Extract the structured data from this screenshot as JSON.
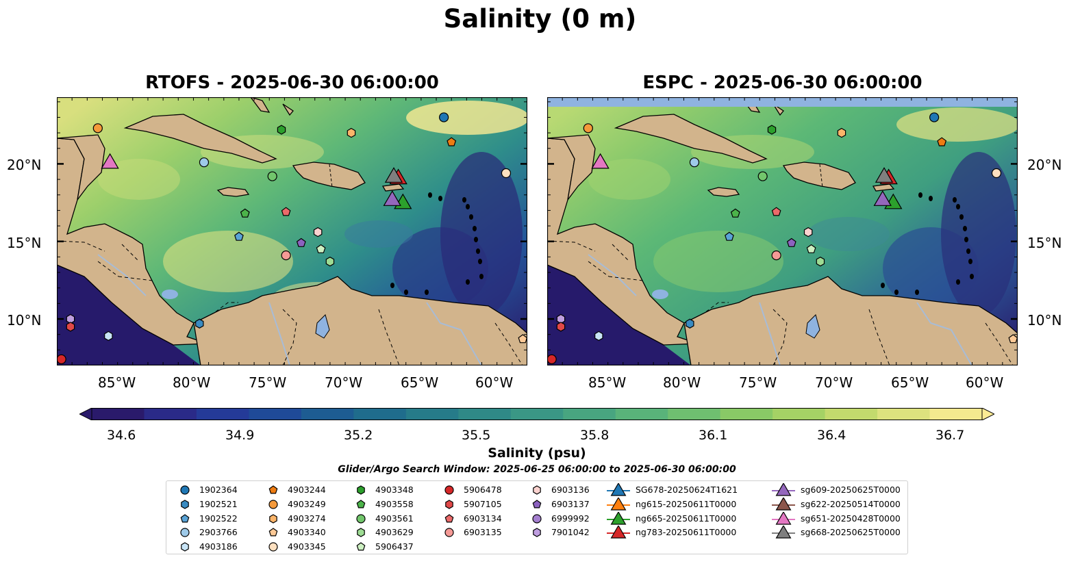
{
  "suptitle": "Salinity (0 m)",
  "colors": {
    "land": "#d2b48c",
    "ocean_low": "#261a6b",
    "ocean_high": "#fbeb94",
    "lakes": "#8fb3e0",
    "rivers": "#a8bcd6"
  },
  "panels": [
    {
      "title": "RTOFS - 2025-06-30 06:00:00",
      "lon_ticks": [
        "85°W",
        "80°W",
        "75°W",
        "70°W",
        "65°W",
        "60°W"
      ],
      "lat_ticks": [
        "20°N",
        "15°N",
        "10°N"
      ],
      "lat_tick_side": "left"
    },
    {
      "title": "ESPC - 2025-06-30 06:00:00",
      "lon_ticks": [
        "85°W",
        "80°W",
        "75°W",
        "70°W",
        "65°W",
        "60°W"
      ],
      "lat_ticks": [
        "20°N",
        "15°N",
        "10°N"
      ],
      "lat_tick_side": "right"
    }
  ],
  "colorbar": {
    "ticks": [
      "34.6",
      "34.9",
      "35.2",
      "35.5",
      "35.8",
      "36.1",
      "36.4",
      "36.7"
    ],
    "label": "Salinity (psu)",
    "extend": "both",
    "min": 34.6,
    "max": 36.7
  },
  "search_window": "Glider/Argo Search Window: 2025-06-25 06:00:00 to 2025-06-30 06:00:00",
  "legend": {
    "columns": [
      [
        {
          "label": "1902364",
          "marker": "circle",
          "color": "#1f77b4"
        },
        {
          "label": "1902521",
          "marker": "hexagon",
          "color": "#3a8bc2"
        },
        {
          "label": "1902522",
          "marker": "pentagon",
          "color": "#5aa3d6"
        },
        {
          "label": "2903766",
          "marker": "circle",
          "color": "#9ecae9"
        },
        {
          "label": "4903186",
          "marker": "hexagon",
          "color": "#c8e4f6"
        }
      ],
      [
        {
          "label": "4903244",
          "marker": "pentagon",
          "color": "#ee7c12"
        },
        {
          "label": "4903249",
          "marker": "circle",
          "color": "#f59a3b"
        },
        {
          "label": "4903274",
          "marker": "hexagon",
          "color": "#fbb56a"
        },
        {
          "label": "4903340",
          "marker": "pentagon",
          "color": "#fcc996"
        },
        {
          "label": "4903345",
          "marker": "circle",
          "color": "#fde0c0"
        }
      ],
      [
        {
          "label": "4903348",
          "marker": "hexagon",
          "color": "#2ca02c"
        },
        {
          "label": "4903558",
          "marker": "pentagon",
          "color": "#4cb34a"
        },
        {
          "label": "4903561",
          "marker": "circle",
          "color": "#72c66c"
        },
        {
          "label": "4903629",
          "marker": "hexagon",
          "color": "#9edc94"
        },
        {
          "label": "5906437",
          "marker": "pentagon",
          "color": "#cdf0c2"
        }
      ],
      [
        {
          "label": "5906478",
          "marker": "circle",
          "color": "#d62728"
        },
        {
          "label": "5907105",
          "marker": "hexagon",
          "color": "#e04848"
        },
        {
          "label": "6903134",
          "marker": "pentagon",
          "color": "#eb6a6a"
        },
        {
          "label": "6903135",
          "marker": "circle",
          "color": "#f59a96"
        }
      ],
      [
        {
          "label": "6903136",
          "marker": "hexagon",
          "color": "#fbd2cf"
        },
        {
          "label": "6903137",
          "marker": "pentagon",
          "color": "#8c62bf"
        },
        {
          "label": "6999992",
          "marker": "circle",
          "color": "#a47fcf"
        },
        {
          "label": "7901042",
          "marker": "hexagon",
          "color": "#bf9ee0"
        }
      ],
      [
        {
          "label": "SG678-20250624T1621",
          "marker": "triangle",
          "color": "#1f77b4"
        },
        {
          "label": "ng615-20250611T0000",
          "marker": "triangle",
          "color": "#ff7f0e"
        },
        {
          "label": "ng665-20250611T0000",
          "marker": "triangle",
          "color": "#2ca02c"
        },
        {
          "label": "ng783-20250611T0000",
          "marker": "triangle",
          "color": "#d62728"
        }
      ],
      [
        {
          "label": "sg609-20250625T0000",
          "marker": "triangle",
          "color": "#9467bd"
        },
        {
          "label": "sg622-20250514T0000",
          "marker": "triangle",
          "color": "#8c564b"
        },
        {
          "label": "sg651-20250428T0000",
          "marker": "triangle",
          "color": "#e377c2"
        },
        {
          "label": "sg668-20250625T0000",
          "marker": "triangle",
          "color": "#7f7f7f"
        }
      ]
    ]
  },
  "map_extent": {
    "lon": [
      -89,
      -58
    ],
    "lat": [
      7,
      24.3
    ]
  },
  "observations": [
    {
      "id": "1902364",
      "lon": -63.5,
      "lat": 23.0
    },
    {
      "id": "4903249",
      "lon": -86.3,
      "lat": 22.3
    },
    {
      "id": "4903348",
      "lon": -74.2,
      "lat": 22.2
    },
    {
      "id": "4903274",
      "lon": -69.6,
      "lat": 22.0
    },
    {
      "id": "4903244",
      "lon": -63.0,
      "lat": 21.4
    },
    {
      "id": "2903766",
      "lon": -79.3,
      "lat": 20.1
    },
    {
      "id": "4903561",
      "lon": -74.8,
      "lat": 19.2
    },
    {
      "id": "4903345",
      "lon": -59.4,
      "lat": 19.4
    },
    {
      "id": "4903558",
      "lon": -76.6,
      "lat": 16.8
    },
    {
      "id": "6903134",
      "lon": -73.9,
      "lat": 16.9
    },
    {
      "id": "6903136",
      "lon": -71.8,
      "lat": 15.6
    },
    {
      "id": "1902522",
      "lon": -77.0,
      "lat": 15.3
    },
    {
      "id": "6903137",
      "lon": -72.9,
      "lat": 14.9
    },
    {
      "id": "5906437",
      "lon": -71.6,
      "lat": 14.5
    },
    {
      "id": "6903135",
      "lon": -73.9,
      "lat": 14.1
    },
    {
      "id": "4903629",
      "lon": -71.0,
      "lat": 13.7
    },
    {
      "id": "1902521",
      "lon": -79.6,
      "lat": 9.7
    },
    {
      "id": "7901042",
      "lon": -88.1,
      "lat": 10.0
    },
    {
      "id": "5907105",
      "lon": -88.1,
      "lat": 9.5
    },
    {
      "id": "4903186",
      "lon": -85.6,
      "lat": 8.9
    },
    {
      "id": "5906478",
      "lon": -88.7,
      "lat": 7.4
    },
    {
      "id": "4903340",
      "lon": -58.3,
      "lat": 8.7
    }
  ],
  "gliders": [
    {
      "id": "ng783-20250611T0000",
      "lon": -66.5,
      "lat": 19.2
    },
    {
      "id": "sg668-20250625T0000",
      "lon": -66.8,
      "lat": 19.3
    },
    {
      "id": "ng665-20250611T0000",
      "lon": -66.2,
      "lat": 17.6
    },
    {
      "id": "sg609-20250625T0000",
      "lon": -66.9,
      "lat": 17.8
    },
    {
      "id": "sg651-20250428T0000",
      "lon": -85.5,
      "lat": 20.2
    }
  ]
}
